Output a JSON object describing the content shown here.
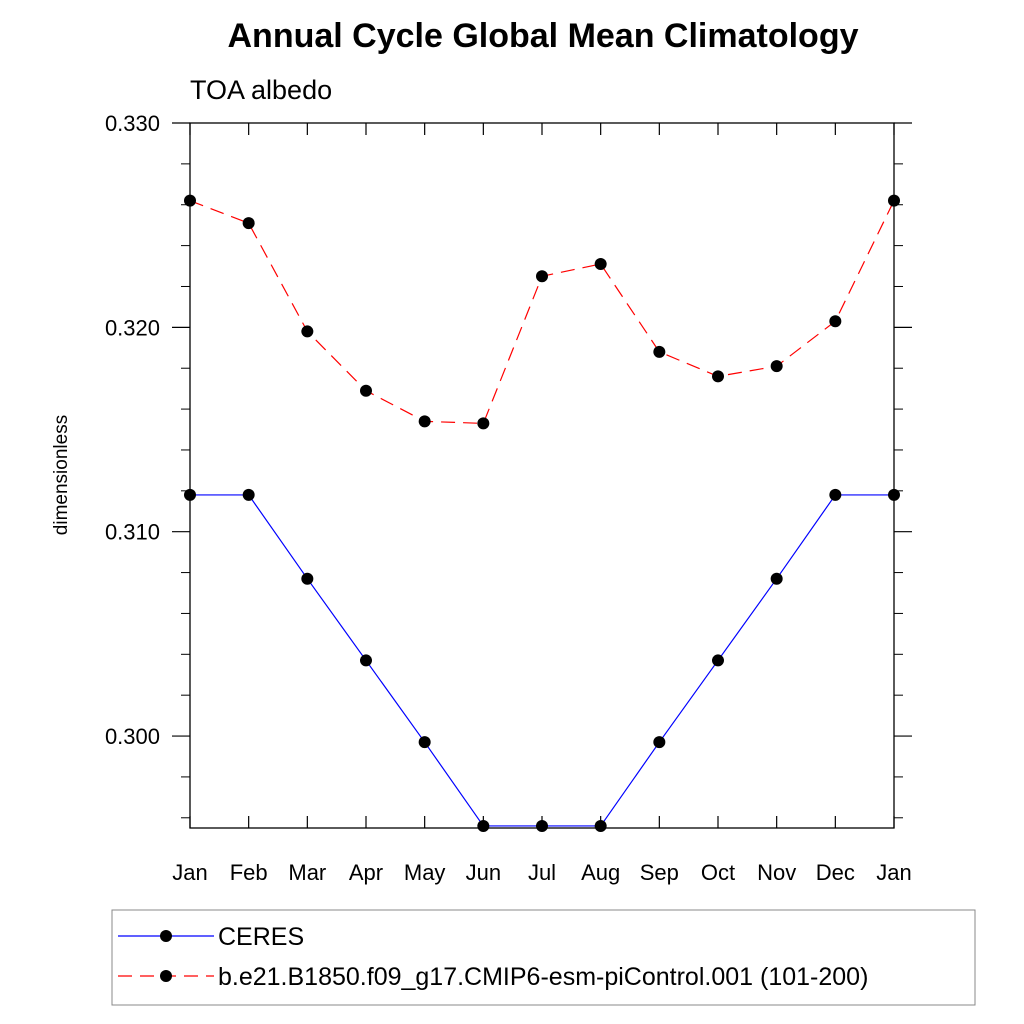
{
  "chart_data": {
    "type": "line",
    "title": "Annual Cycle Global Mean Climatology",
    "subtitle": "TOA albedo",
    "xlabel": "",
    "ylabel": "dimensionless",
    "categories": [
      "Jan",
      "Feb",
      "Mar",
      "Apr",
      "May",
      "Jun",
      "Jul",
      "Aug",
      "Sep",
      "Oct",
      "Nov",
      "Dec",
      "Jan"
    ],
    "ylim": [
      0.2955,
      0.33
    ],
    "yticks": [
      0.3,
      0.31,
      0.32,
      0.33
    ],
    "ytick_labels": [
      "0.300",
      "0.310",
      "0.320",
      "0.330"
    ],
    "series": [
      {
        "name": "CERES",
        "color": "#0000ff",
        "dash": "solid",
        "values": [
          0.3118,
          0.3118,
          0.3077,
          0.3037,
          0.2997,
          0.2956,
          0.2956,
          0.2956,
          0.2997,
          0.3037,
          0.3077,
          0.3118,
          0.3118
        ]
      },
      {
        "name": "b.e21.B1850.f09_g17.CMIP6-esm-piControl.001 (101-200)",
        "color": "#ff0000",
        "dash": "dashed",
        "values": [
          0.3262,
          0.3251,
          0.3198,
          0.3169,
          0.3154,
          0.3153,
          0.3225,
          0.3231,
          0.3188,
          0.3176,
          0.3181,
          0.3203,
          0.3262
        ]
      }
    ],
    "legend_position": "bottom",
    "grid": false
  }
}
